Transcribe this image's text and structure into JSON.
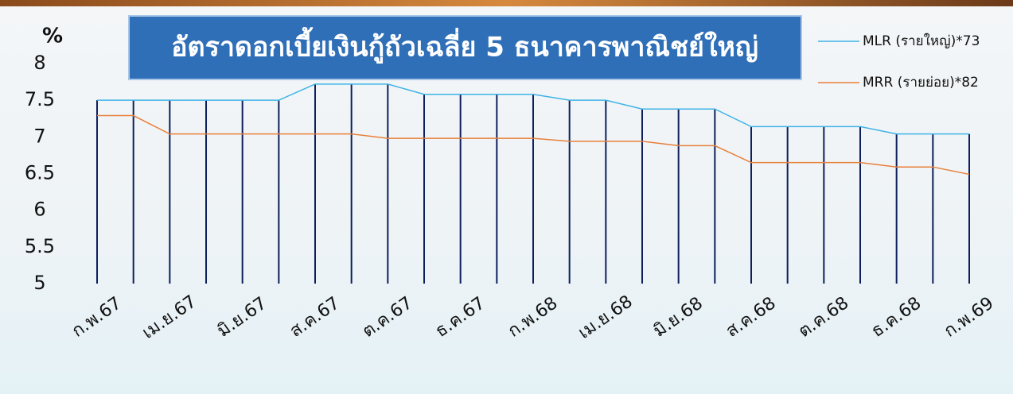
{
  "chart_data": {
    "type": "line",
    "title": "อัตราดอกเบี้ยเงินกู้ถัวเฉลี่ย 5 ธนาคารพาณิชย์ใหญ่",
    "y_label": "%",
    "categories": [
      "ก.พ.67",
      null,
      "เม.ย.67",
      null,
      "มิ.ย.67",
      null,
      "ส.ค.67",
      null,
      "ต.ค.67",
      null,
      "ธ.ค.67",
      null,
      "ก.พ.68",
      null,
      "เม.ย.68",
      null,
      "มิ.ย.68",
      null,
      "ส.ค.68",
      null,
      "ต.ค.68",
      null,
      "ธ.ค.68",
      null,
      "ก.พ.69"
    ],
    "series": [
      {
        "name": "MLR (รายใหญ่)*73",
        "color": "#3fb4e6",
        "drop_lines": true,
        "drop_color": "#0d1f5c",
        "values": [
          7.5,
          7.5,
          7.5,
          7.5,
          7.5,
          7.5,
          7.72,
          7.72,
          7.72,
          7.58,
          7.58,
          7.58,
          7.58,
          7.5,
          7.5,
          7.38,
          7.38,
          7.38,
          7.14,
          7.14,
          7.14,
          7.14,
          7.04,
          7.04,
          7.04
        ]
      },
      {
        "name": "MRR (รายย่อย)*82",
        "color": "#e8803a",
        "values": [
          7.29,
          7.29,
          7.04,
          7.04,
          7.04,
          7.04,
          7.04,
          7.04,
          6.98,
          6.98,
          6.98,
          6.98,
          6.98,
          6.94,
          6.94,
          6.94,
          6.88,
          6.88,
          6.65,
          6.65,
          6.65,
          6.65,
          6.59,
          6.59,
          6.49
        ]
      }
    ],
    "ylim": [
      5,
      8
    ],
    "yticks": [
      5,
      5.5,
      6,
      6.5,
      7,
      7.5,
      8
    ],
    "grid": false,
    "legend": "top-right"
  }
}
